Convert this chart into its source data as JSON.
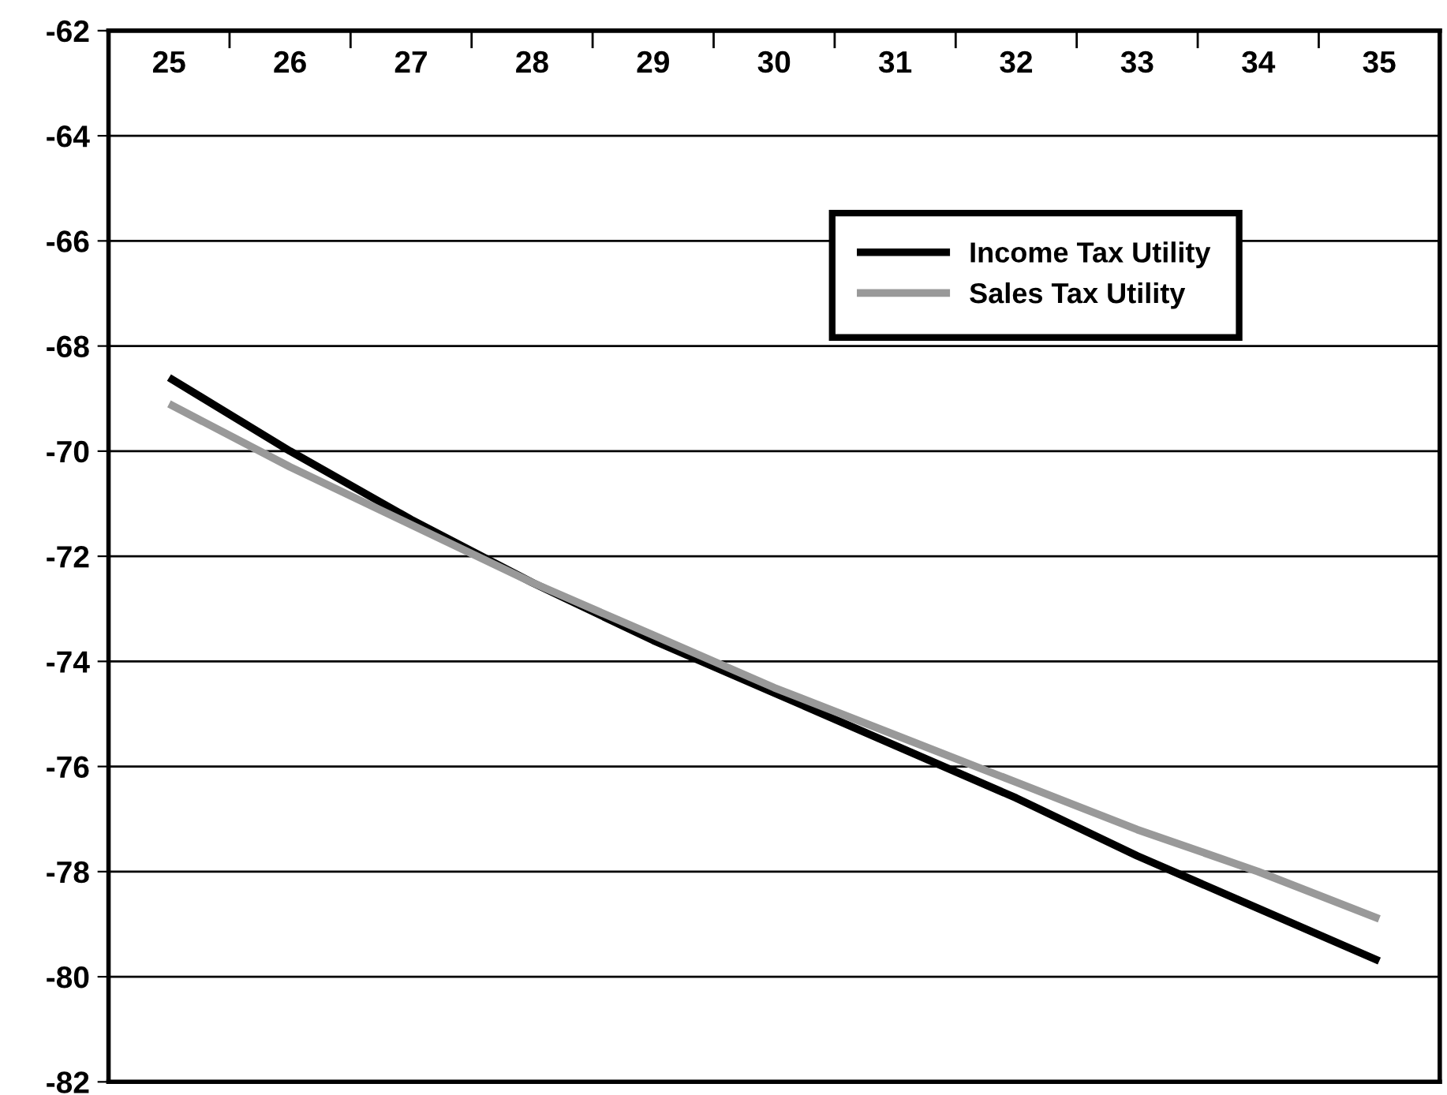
{
  "chart_data": {
    "type": "line",
    "categories": [
      "25",
      "26",
      "27",
      "28",
      "29",
      "30",
      "31",
      "32",
      "33",
      "34",
      "35"
    ],
    "series": [
      {
        "name": "Income Tax Utility",
        "color": "#000000",
        "values": [
          -68.6,
          -70.0,
          -71.3,
          -72.5,
          -73.6,
          -74.6,
          -75.6,
          -76.6,
          -77.7,
          -78.7,
          -79.7
        ]
      },
      {
        "name": "Sales Tax Utility",
        "color": "#999999",
        "values": [
          -69.1,
          -70.3,
          -71.4,
          -72.5,
          -73.5,
          -74.5,
          -75.4,
          -76.3,
          -77.2,
          -78.0,
          -78.9
        ]
      }
    ],
    "ylim": [
      -82,
      -62
    ],
    "yticks": [
      -82,
      -80,
      -78,
      -76,
      -74,
      -72,
      -70,
      -68,
      -66,
      -64,
      -62
    ],
    "grid": "y",
    "legend": "top right",
    "marker": "none",
    "line_style": "solid"
  }
}
